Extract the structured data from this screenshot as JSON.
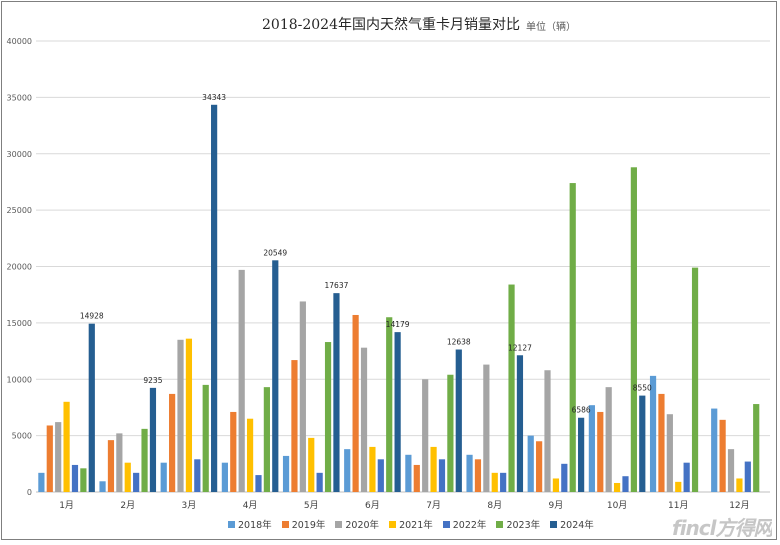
{
  "chart_data": {
    "type": "bar",
    "title": "2018-2024年国内天然气重卡月销量对比",
    "unit_label": "单位（辆）",
    "categories": [
      "1月",
      "2月",
      "3月",
      "4月",
      "5月",
      "6月",
      "7月",
      "8月",
      "9月",
      "10月",
      "11月",
      "12月"
    ],
    "ylim": [
      0,
      40000
    ],
    "yticks": [
      0,
      5000,
      10000,
      15000,
      20000,
      25000,
      30000,
      35000,
      40000
    ],
    "grid": true,
    "legend_position": "bottom",
    "series": [
      {
        "name": "2018年",
        "color": "#5b9bd5",
        "values": [
          1700,
          950,
          2600,
          2600,
          3200,
          3800,
          3300,
          3300,
          5000,
          7700,
          10300,
          7400
        ]
      },
      {
        "name": "2019年",
        "color": "#ed7d31",
        "values": [
          5900,
          4600,
          8700,
          7100,
          11700,
          15700,
          2400,
          2900,
          4500,
          7100,
          8700,
          6400
        ]
      },
      {
        "name": "2020年",
        "color": "#a5a5a5",
        "values": [
          6200,
          5200,
          13500,
          19700,
          16900,
          12800,
          10000,
          11300,
          10800,
          9300,
          6900,
          3800
        ]
      },
      {
        "name": "2021年",
        "color": "#ffc000",
        "values": [
          8000,
          2600,
          13600,
          6500,
          4800,
          4000,
          4000,
          1700,
          1200,
          800,
          900,
          1200
        ]
      },
      {
        "name": "2022年",
        "color": "#4472c4",
        "values": [
          2400,
          1700,
          2900,
          1500,
          1700,
          2900,
          2900,
          1700,
          2500,
          1400,
          2600,
          2700
        ]
      },
      {
        "name": "2023年",
        "color": "#70ad47",
        "values": [
          2100,
          5600,
          9500,
          9300,
          13300,
          15500,
          10400,
          18400,
          27400,
          28800,
          19900,
          7800
        ]
      },
      {
        "name": "2024年",
        "color": "#255e91",
        "values": [
          14928,
          9235,
          34343,
          20549,
          17637,
          14179,
          12638,
          12127,
          6586,
          8550,
          null,
          null
        ]
      }
    ],
    "data_labels": {
      "series": "2024年",
      "values": [
        "14928",
        "9235",
        "34343",
        "20549",
        "17637",
        "14179",
        "12638",
        "12127",
        "6586",
        "8550"
      ]
    }
  },
  "watermark": "fincl方得网"
}
